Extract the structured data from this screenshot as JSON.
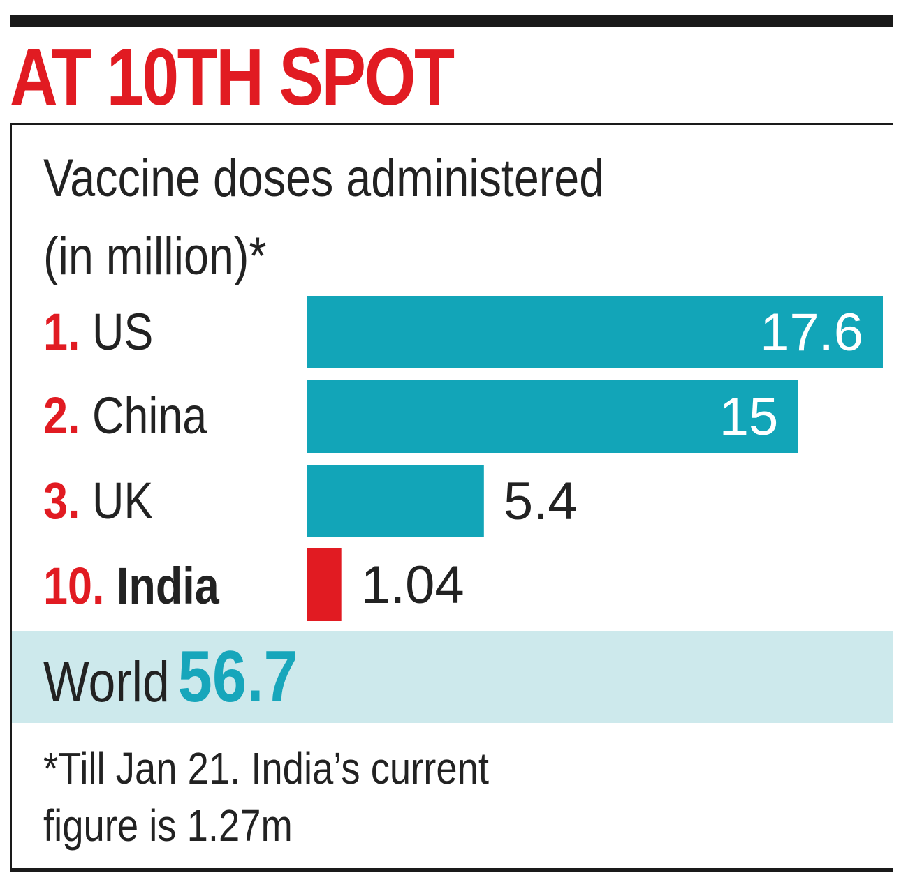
{
  "chart_data": {
    "type": "bar",
    "orientation": "horizontal",
    "title": "AT 10TH SPOT",
    "subtitle_lines": [
      "Vaccine doses administered",
      "(in million)*"
    ],
    "rows": [
      {
        "rank": "1.",
        "name": "US",
        "value": 17.6,
        "value_label": "17.6",
        "color": "#12a5b8"
      },
      {
        "rank": "2.",
        "name": "China",
        "value": 15,
        "value_label": "15",
        "color": "#12a5b8"
      },
      {
        "rank": "3.",
        "name": "UK",
        "value": 5.4,
        "value_label": "5.4",
        "color": "#12a5b8"
      },
      {
        "rank": "10.",
        "name": "India",
        "value": 1.04,
        "value_label": "1.04",
        "color": "#e11b22"
      }
    ],
    "total": {
      "label": "World",
      "value_label": "56.7",
      "value": 56.7
    },
    "footnote_lines": [
      "*Till Jan 21. India’s current",
      "figure is 1.27m"
    ],
    "grid": false,
    "legend": "none"
  },
  "colors": {
    "accent_red": "#e11b22",
    "bar_teal": "#12a5b8",
    "world_value_teal": "#17a6bb",
    "world_band": "#cde9ec",
    "rule": "#1a1a1a"
  }
}
